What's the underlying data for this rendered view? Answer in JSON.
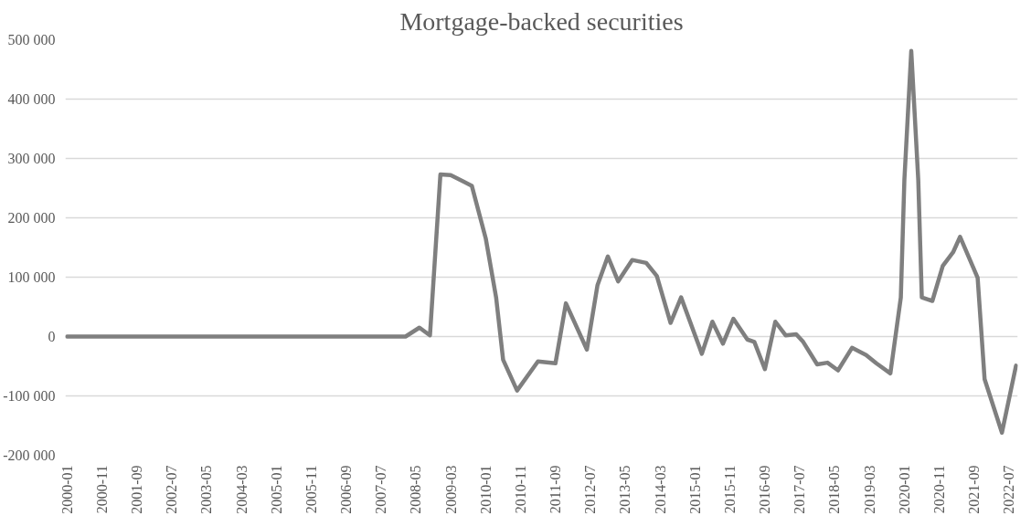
{
  "chart_data": {
    "type": "line",
    "title": "Mortgage-backed securities",
    "x": [
      "2000-01",
      "2008-02",
      "2008-06",
      "2008-09",
      "2008-12",
      "2009-03",
      "2009-09",
      "2010-01",
      "2010-04",
      "2010-06",
      "2010-10",
      "2011-04",
      "2011-09",
      "2011-12",
      "2012-06",
      "2012-09",
      "2012-12",
      "2013-03",
      "2013-07",
      "2013-11",
      "2014-02",
      "2014-06",
      "2014-09",
      "2015-03",
      "2015-06",
      "2015-09",
      "2015-12",
      "2016-04",
      "2016-06",
      "2016-09",
      "2016-12",
      "2017-03",
      "2017-06",
      "2017-08",
      "2017-12",
      "2018-03",
      "2018-06",
      "2018-10",
      "2019-02",
      "2019-05",
      "2019-09",
      "2019-12",
      "2020-01",
      "2020-03",
      "2020-05",
      "2020-06",
      "2020-09",
      "2020-12",
      "2021-03",
      "2021-05",
      "2021-10",
      "2021-12",
      "2022-05",
      "2022-09"
    ],
    "series": [
      {
        "color": "#7f7f7f",
        "values": [
          0,
          0,
          15000,
          2000,
          273000,
          272000,
          254000,
          165000,
          66000,
          -39000,
          -91000,
          -42000,
          -45000,
          56000,
          -22000,
          86000,
          135000,
          93000,
          129000,
          124000,
          102000,
          23000,
          66000,
          -29000,
          25000,
          -12000,
          30000,
          -5000,
          -9000,
          -55000,
          25000,
          2000,
          4000,
          -9000,
          -47000,
          -44000,
          -57000,
          -19000,
          -31000,
          -45000,
          -62000,
          66000,
          264000,
          481000,
          264000,
          66000,
          60000,
          119000,
          142000,
          168000,
          99000,
          -72000,
          -162000,
          -49000
        ]
      }
    ],
    "xlim": [
      "2000-01",
      "2022-09"
    ],
    "xticks": [
      "2000-01",
      "2000-11",
      "2001-09",
      "2002-07",
      "2003-05",
      "2004-03",
      "2005-01",
      "2005-11",
      "2006-09",
      "2007-07",
      "2008-05",
      "2009-03",
      "2010-01",
      "2010-11",
      "2011-09",
      "2012-07",
      "2013-05",
      "2014-03",
      "2015-01",
      "2015-11",
      "2016-09",
      "2017-07",
      "2018-05",
      "2019-03",
      "2020-01",
      "2020-11",
      "2021-09",
      "2022-07"
    ],
    "ylim": [
      -200000,
      500000
    ],
    "yticks": [
      {
        "value": -200000,
        "label": "-200 000"
      },
      {
        "value": -100000,
        "label": "-100 000"
      },
      {
        "value": 0,
        "label": "0"
      },
      {
        "value": 100000,
        "label": "100 000"
      },
      {
        "value": 200000,
        "label": "200 000"
      },
      {
        "value": 300000,
        "label": "300 000"
      },
      {
        "value": 400000,
        "label": "400 000"
      },
      {
        "value": 500000,
        "label": "500 000"
      }
    ],
    "grid": "y",
    "marker": "none",
    "line_style": "solid"
  }
}
